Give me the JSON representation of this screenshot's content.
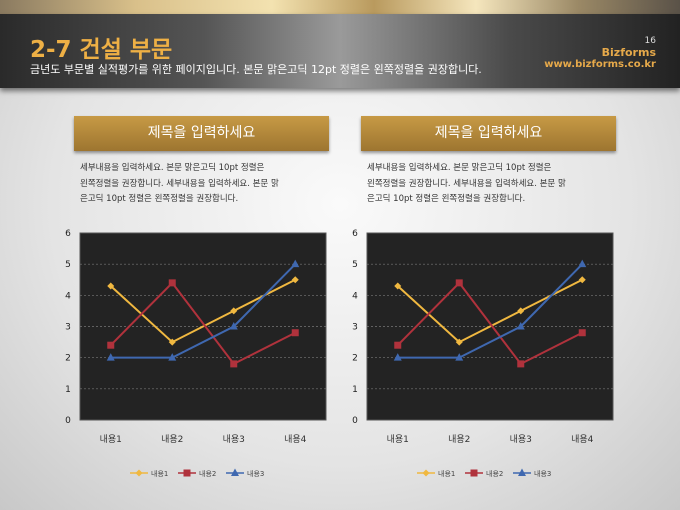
{
  "header": {
    "title": "2-7 건설 부문",
    "subtitle": "금년도 부문별 실적평가를 위한 페이지입니다. 본문 맑은고딕 12pt 정렬은 왼쪽정렬을 권장합니다.",
    "page_number": "16",
    "brand": "Bizforms",
    "url": "www.bizforms.co.kr"
  },
  "panels": [
    {
      "title": "제목을 입력하세요",
      "lines": [
        "세부내용을 입력하세요. 본문 맑은고딕 10pt 정렬은",
        "왼쪽정렬을 권장합니다. 세부내용을 입력하세요. 본문 맑",
        "은고딕 10pt 정렬은 왼쪽정렬을 권장합니다."
      ]
    },
    {
      "title": "제목을 입력하세요",
      "lines": [
        "세부내용을 입력하세요. 본문 맑은고딕 10pt 정렬은",
        "왼쪽정렬을 권장합니다. 세부내용을 입력하세요. 본문 맑",
        "은고딕 10pt 정렬은 왼쪽정렬을 권장합니다."
      ]
    }
  ],
  "chart_data": [
    {
      "type": "line",
      "categories": [
        "내용1",
        "내용2",
        "내용3",
        "내용4"
      ],
      "ylim": [
        0,
        6
      ],
      "yticks": [
        "0",
        "1",
        "2",
        "3",
        "4",
        "5",
        "6"
      ],
      "grid": true,
      "legend": "bottom",
      "series": [
        {
          "name": "내용1",
          "values": [
            4.3,
            2.5,
            3.5,
            4.5
          ],
          "color": "#f0b840",
          "marker": "diamond"
        },
        {
          "name": "내용2",
          "values": [
            2.4,
            4.4,
            1.8,
            2.8
          ],
          "color": "#b0323c",
          "marker": "square"
        },
        {
          "name": "내용3",
          "values": [
            2,
            2,
            3,
            5
          ],
          "color": "#3f68b0",
          "marker": "triangle"
        }
      ]
    },
    {
      "type": "line",
      "categories": [
        "내용1",
        "내용2",
        "내용3",
        "내용4"
      ],
      "ylim": [
        0,
        6
      ],
      "yticks": [
        "0",
        "1",
        "2",
        "3",
        "4",
        "5",
        "6"
      ],
      "grid": true,
      "legend": "bottom",
      "series": [
        {
          "name": "내용1",
          "values": [
            4.3,
            2.5,
            3.5,
            4.5
          ],
          "color": "#f0b840",
          "marker": "diamond"
        },
        {
          "name": "내용2",
          "values": [
            2.4,
            4.4,
            1.8,
            2.8
          ],
          "color": "#b0323c",
          "marker": "square"
        },
        {
          "name": "내용3",
          "values": [
            2,
            2,
            3,
            5
          ],
          "color": "#3f68b0",
          "marker": "triangle"
        }
      ]
    }
  ]
}
